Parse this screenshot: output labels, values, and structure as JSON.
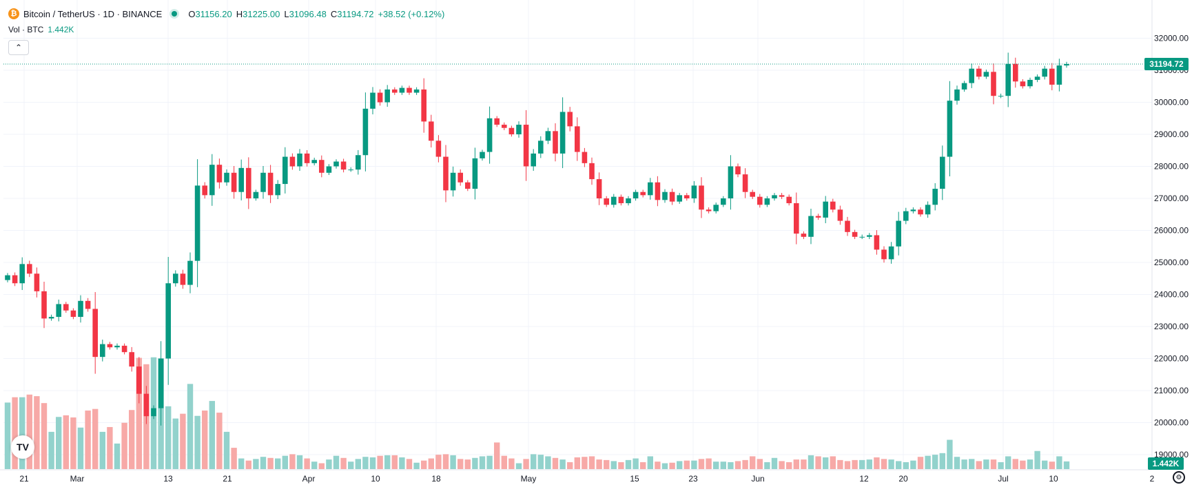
{
  "header": {
    "symbol_line": "Bitcoin / TetherUS · 1D · BINANCE",
    "open_label": "O",
    "open": "31156.20",
    "high_label": "H",
    "high": "31225.00",
    "low_label": "L",
    "low": "31096.48",
    "close_label": "C",
    "close": "31194.72",
    "change": "+38.52 (+0.12%)",
    "coin_icon": "bitcoin-icon"
  },
  "volume_legend": {
    "label": "Vol · BTC",
    "value": "1.442K"
  },
  "colors": {
    "up": "#089981",
    "down": "#f23645",
    "vol_up": "#92d2cc",
    "vol_down": "#f7a9a7",
    "grid": "#f0f3fa"
  },
  "chart_data": {
    "type": "candlestick",
    "y_ticks": [
      "32000.00",
      "31000.00",
      "30000.00",
      "29000.00",
      "28000.00",
      "27000.00",
      "26000.00",
      "25000.00",
      "24000.00",
      "23000.00",
      "22000.00",
      "21000.00",
      "20000.00",
      "19000.00"
    ],
    "x_ticks": [
      "21",
      "Mar",
      "13",
      "21",
      "Apr",
      "10",
      "18",
      "May",
      "15",
      "23",
      "Jun",
      "12",
      "20",
      "Jul",
      "10",
      "2"
    ],
    "last_price_label": "31194.72",
    "last_volume_label": "1.442K",
    "ylim": [
      18500,
      32400
    ],
    "volume_max": 22000,
    "close_series": [
      24600,
      24350,
      24950,
      24650,
      24100,
      23250,
      23300,
      23700,
      23500,
      23300,
      23800,
      23550,
      22050,
      22450,
      22350,
      22400,
      22200,
      21750,
      20900,
      20200,
      20450,
      22000,
      24350,
      24650,
      24300,
      25050,
      27400,
      27100,
      28050,
      27500,
      27800,
      27200,
      27950,
      27000,
      27200,
      27800,
      27100,
      27450,
      28300,
      28000,
      28400,
      28100,
      28200,
      27800,
      28000,
      28150,
      27900,
      27900,
      28350,
      29800,
      30300,
      30000,
      30400,
      30300,
      30450,
      30300,
      30400,
      29400,
      28800,
      28300,
      27250,
      27800,
      27500,
      27300,
      28250,
      28450,
      29500,
      29300,
      29200,
      29000,
      29300,
      28000,
      28400,
      28800,
      29100,
      28400,
      29700,
      29250,
      28450,
      28100,
      27600,
      27000,
      26800,
      27050,
      26850,
      27000,
      27200,
      27100,
      27500,
      26950,
      27200,
      26900,
      27100,
      27000,
      27400,
      26650,
      26600,
      26800,
      27000,
      28000,
      27750,
      27200,
      27050,
      26800,
      27000,
      27100,
      27050,
      26850,
      25900,
      25800,
      26450,
      26400,
      26900,
      26650,
      26300,
      25950,
      25800,
      25800,
      25850,
      25400,
      25100,
      25500,
      26300,
      26600,
      26650,
      26500,
      26800,
      27300,
      28300,
      30050,
      30400,
      30600,
      31050,
      30800,
      30950,
      30200,
      30200,
      31200,
      30650,
      30500,
      30700,
      30800,
      31050,
      30550,
      31150,
      31194.72
    ],
    "volume_series": [
      12500,
      13500,
      13500,
      14000,
      13700,
      12400,
      7000,
      9800,
      10100,
      9700,
      7800,
      11000,
      11300,
      7000,
      7900,
      4800,
      8700,
      11100,
      20900,
      19700,
      21000,
      20800,
      11800,
      9500,
      10400,
      16000,
      10000,
      11000,
      12800,
      10600,
      7000,
      4000,
      2000,
      1600,
      1900,
      2300,
      2100,
      2000,
      2500,
      2800,
      2600,
      2000,
      1400,
      1100,
      1800,
      2500,
      2100,
      1400,
      1900,
      2300,
      2200,
      2500,
      2600,
      2600,
      2200,
      1900,
      1200,
      1600,
      2000,
      2700,
      2800,
      2600,
      1900,
      1800,
      2100,
      2400,
      2500,
      5000,
      2500,
      2000,
      1100,
      1900,
      2800,
      2700,
      2400,
      2100,
      1800,
      1300,
      2200,
      2300,
      2400,
      1800,
      1700,
      1500,
      1300,
      1700,
      2000,
      1300,
      2400,
      1400,
      1100,
      1200,
      1500,
      1600,
      1600,
      1900,
      2000,
      1400,
      1400,
      1300,
      1500,
      1700,
      2400,
      1900,
      1300,
      2100,
      1500,
      1300,
      1800,
      1800,
      2600,
      2400,
      2200,
      2400,
      1700,
      1500,
      1700,
      1700,
      1800,
      2200,
      1900,
      1800,
      1500,
      1300,
      1600,
      2300,
      2500,
      2700,
      3000,
      5500,
      2300,
      1800,
      1900,
      1500,
      1800,
      1800,
      1300,
      2400,
      1900,
      1600,
      1800,
      3400,
      1600,
      1400,
      2400,
      1442
    ]
  }
}
